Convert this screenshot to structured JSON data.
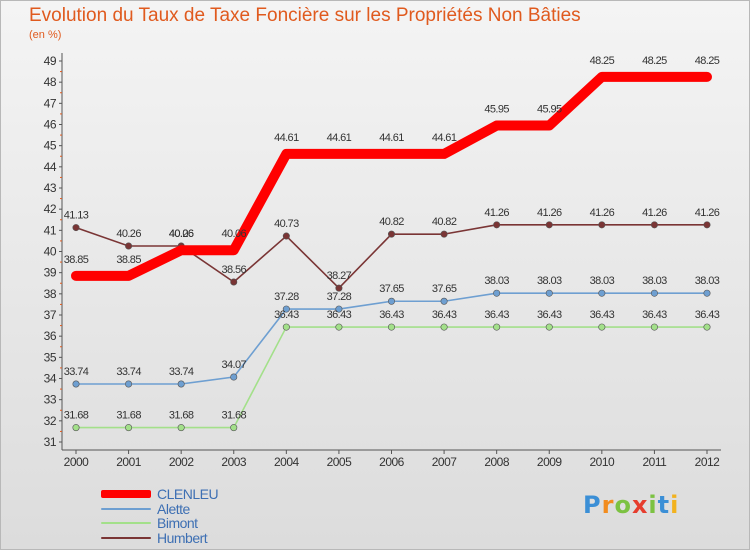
{
  "header": {
    "title": "Evolution du Taux de Taxe Foncière sur les Propriétés Non Bâties",
    "subtitle": "(en %)"
  },
  "logo": {
    "text": "Proxiti",
    "colors": [
      "#3b8fd6",
      "#f28c1e",
      "#7cc242",
      "#e63d2e",
      "#7cc242",
      "#3b8fd6",
      "#f2b21e"
    ]
  },
  "chart_data": {
    "type": "line",
    "x": [
      "2000",
      "2001",
      "2002",
      "2003",
      "2004",
      "2005",
      "2006",
      "2007",
      "2008",
      "2009",
      "2010",
      "2011",
      "2012"
    ],
    "ylim": [
      31,
      49
    ],
    "yticks": [
      31,
      32,
      33,
      34,
      35,
      36,
      37,
      38,
      39,
      40,
      41,
      42,
      43,
      44,
      45,
      46,
      47,
      48,
      49
    ],
    "grid": false,
    "legend_position": "bottom-left",
    "series": [
      {
        "name": "CLENLEU",
        "color": "#ff0000",
        "values": [
          38.85,
          38.85,
          40.06,
          40.06,
          44.61,
          44.61,
          44.61,
          44.61,
          45.95,
          45.95,
          48.25,
          48.25,
          48.25
        ],
        "labels": [
          "38.85",
          "38.85",
          "40.06",
          "40.06",
          "44.61",
          "44.61",
          "44.61",
          "44.61",
          "45.95",
          "45.95",
          "48.25",
          "48.25",
          "48.25"
        ]
      },
      {
        "name": "Alette",
        "color": "#6e9fd1",
        "values": [
          33.74,
          33.74,
          33.74,
          34.07,
          37.28,
          37.28,
          37.65,
          37.65,
          38.03,
          38.03,
          38.03,
          38.03,
          38.03
        ],
        "labels": [
          "33.74",
          "33.74",
          "33.74",
          "34.07",
          "37.28",
          "37.28",
          "37.65",
          "37.65",
          "38.03",
          "38.03",
          "38.03",
          "38.03",
          "38.03"
        ]
      },
      {
        "name": "Bimont",
        "color": "#a3e08a",
        "values": [
          31.68,
          31.68,
          31.68,
          31.68,
          36.43,
          36.43,
          36.43,
          36.43,
          36.43,
          36.43,
          36.43,
          36.43,
          36.43
        ],
        "labels": [
          "31.68",
          "31.68",
          "31.68",
          "31.68",
          "36.43",
          "36.43",
          "36.43",
          "36.43",
          "36.43",
          "36.43",
          "36.43",
          "36.43",
          "36.43"
        ]
      },
      {
        "name": "Humbert",
        "color": "#7a3535",
        "values": [
          41.13,
          40.26,
          40.26,
          38.56,
          40.73,
          38.27,
          40.82,
          40.82,
          41.26,
          41.26,
          41.26,
          41.26,
          41.26
        ],
        "labels": [
          "41.13",
          "40.26",
          "40.26",
          "38.56",
          "40.73",
          "38.27",
          "40.82",
          "40.82",
          "41.26",
          "41.26",
          "41.26",
          "41.26",
          "41.26"
        ]
      }
    ]
  }
}
